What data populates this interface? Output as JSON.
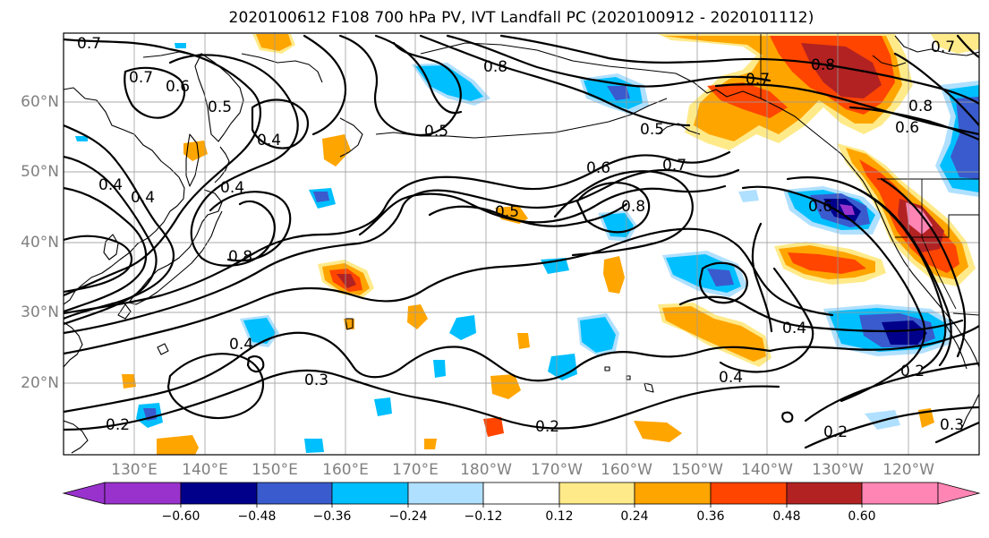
{
  "title": "2020100612 F108 700 hPa PV, IVT Landfall PC (2020100912 - 2020101112)",
  "lat_labels": [
    "60°N",
    "50°N",
    "40°N",
    "30°N",
    "20°N"
  ],
  "lon_labels": [
    "130°E",
    "140°E",
    "150°E",
    "160°E",
    "170°E",
    "180°W",
    "170°W",
    "160°W",
    "150°W",
    "140°W",
    "130°W",
    "120°W"
  ],
  "colorbar": {
    "colors": [
      "#9932CC",
      "#00008B",
      "#3A5BCD",
      "#00BFFF",
      "#B0E0FF",
      "#FFFFFF",
      "#FFEA8A",
      "#FFA500",
      "#FF4500",
      "#B22222",
      "#FF85B4"
    ],
    "tick_labels": [
      "−0.60",
      "−0.48",
      "−0.36",
      "−0.24",
      "−0.12",
      "0.12",
      "0.24",
      "0.36",
      "0.48",
      "0.60"
    ]
  },
  "contour_labels": [
    "0.7",
    "0.7",
    "0.6",
    "0.5",
    "0.8",
    "0.4",
    "0.5",
    "0.5",
    "0.5",
    "0.8",
    "0.6",
    "0.7",
    "0.4",
    "0.8",
    "0.6",
    "0.4",
    "0.7",
    "0.8",
    "0.6",
    "0.4",
    "0.8",
    "0.7",
    "0.4",
    "0.3",
    "0.2",
    "0.4",
    "0.4",
    "0.2",
    "0.2",
    "0.3",
    "0.2"
  ]
}
